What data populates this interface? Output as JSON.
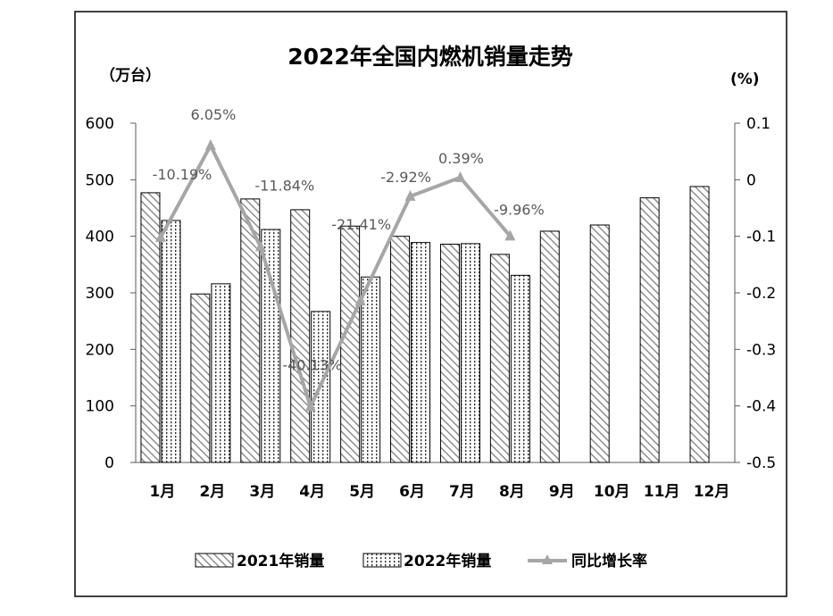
{
  "chart_data": {
    "type": "bar",
    "title": "2022年全国内燃机销量走势",
    "y_left_unit": "（万台）",
    "y_right_unit": "(%)",
    "categories": [
      "1月",
      "2月",
      "3月",
      "4月",
      "5月",
      "6月",
      "7月",
      "8月",
      "9月",
      "10月",
      "11月",
      "12月"
    ],
    "ylim_left": [
      0,
      600
    ],
    "yticks_left": [
      "0",
      "100",
      "200",
      "300",
      "400",
      "500",
      "600"
    ],
    "ylim_right": [
      -0.5,
      0.1
    ],
    "yticks_right": [
      "-0.5",
      "-0.4",
      "-0.3",
      "-0.2",
      "-0.1",
      "0",
      "0.1"
    ],
    "grid": false,
    "legend_position": "bottom",
    "series": [
      {
        "name": "2021年销量",
        "type": "bar",
        "axis": "left",
        "pattern": "diagonal-hatch",
        "values": [
          477,
          298,
          466,
          447,
          418,
          400,
          386,
          368,
          409,
          420,
          468,
          488
        ]
      },
      {
        "name": "2022年销量",
        "type": "bar",
        "axis": "left",
        "pattern": "dotted",
        "values": [
          428,
          316,
          412,
          267,
          328,
          389,
          387,
          331,
          null,
          null,
          null,
          null
        ]
      },
      {
        "name": "同比增长率",
        "type": "line",
        "axis": "right",
        "color": "#a6a6a6",
        "values": [
          -0.1019,
          0.0605,
          -0.1184,
          -0.4013,
          -0.2141,
          -0.0292,
          0.0039,
          -0.0996,
          null,
          null,
          null,
          null
        ],
        "labels": [
          "-10.19%",
          "6.05%",
          "-11.84%",
          "-40.13%",
          "-21.41%",
          "-2.92%",
          "0.39%",
          "-9.96%",
          null,
          null,
          null,
          null
        ]
      }
    ]
  }
}
